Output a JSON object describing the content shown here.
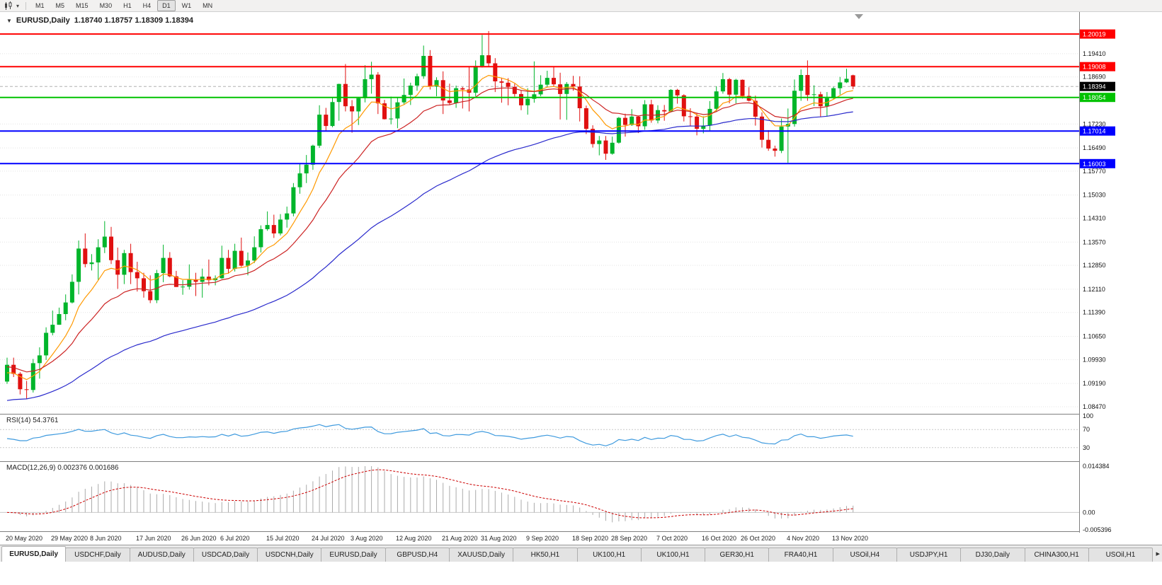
{
  "toolbar": {
    "dropdown_caret": "▾",
    "timeframes": [
      {
        "label": "M1",
        "active": false
      },
      {
        "label": "M5",
        "active": false
      },
      {
        "label": "M15",
        "active": false
      },
      {
        "label": "M30",
        "active": false
      },
      {
        "label": "H1",
        "active": false
      },
      {
        "label": "H4",
        "active": false
      },
      {
        "label": "D1",
        "active": true
      },
      {
        "label": "W1",
        "active": false
      },
      {
        "label": "MN",
        "active": false
      }
    ]
  },
  "chart": {
    "collapse_icon": "▼",
    "symbol_label": "EURUSD,Daily",
    "ohlc_label": "1.18740 1.18757 1.18309 1.18394"
  },
  "price_axis": {
    "regular_labels": [
      "1.19410",
      "1.18690",
      "1.17230",
      "1.16490",
      "1.15770",
      "1.15030",
      "1.14310",
      "1.13570",
      "1.12850",
      "1.12110",
      "1.11390",
      "1.10650",
      "1.09930",
      "1.09190",
      "1.08470"
    ],
    "badges": [
      {
        "value": "1.20019",
        "price": 1.20019,
        "color": "#FF0000"
      },
      {
        "value": "1.19008",
        "price": 1.19008,
        "color": "#FF0000"
      },
      {
        "value": "1.18394",
        "price": 1.18394,
        "color": "#000000"
      },
      {
        "value": "1.18054",
        "price": 1.18054,
        "color": "#00C200"
      },
      {
        "value": "1.17014",
        "price": 1.17014,
        "color": "#0000FF"
      },
      {
        "value": "1.16003",
        "price": 1.16003,
        "color": "#0000FF"
      }
    ]
  },
  "hlines": [
    {
      "price": 1.20019,
      "color": "#FF0000",
      "role": "resistance"
    },
    {
      "price": 1.19008,
      "color": "#FF0000",
      "role": "resistance"
    },
    {
      "price": 1.18054,
      "color": "#00C200",
      "role": "pivot"
    },
    {
      "price": 1.17014,
      "color": "#0000FF",
      "role": "support"
    },
    {
      "price": 1.16003,
      "color": "#0000FF",
      "role": "support"
    }
  ],
  "bid_line": {
    "price": 1.18394,
    "label": "1.18394"
  },
  "rsi_panel": {
    "label": "RSI(14) 54.3761",
    "value": 54.3761,
    "levels": [
      {
        "text": "100",
        "value": 100
      },
      {
        "text": "70",
        "value": 70
      },
      {
        "text": "30",
        "value": 30
      }
    ]
  },
  "macd_panel": {
    "label": "MACD(12,26,9) 0.002376 0.001686",
    "macd_value": 0.002376,
    "signal_value": 0.001686,
    "axis": [
      {
        "text": "0.014384",
        "value": 0.014384
      },
      {
        "text": "0.00",
        "value": 0
      },
      {
        "text": "-0.005396",
        "value": -0.005396
      }
    ]
  },
  "date_axis": [
    {
      "text": "20 May 2020",
      "i": 0
    },
    {
      "text": "29 May 2020",
      "i": 7
    },
    {
      "text": "8 Jun 2020",
      "i": 13
    },
    {
      "text": "17 Jun 2020",
      "i": 20
    },
    {
      "text": "26 Jun 2020",
      "i": 27
    },
    {
      "text": "6 Jul 2020",
      "i": 33
    },
    {
      "text": "15 Jul 2020",
      "i": 40
    },
    {
      "text": "24 Jul 2020",
      "i": 47
    },
    {
      "text": "3 Aug 2020",
      "i": 53
    },
    {
      "text": "12 Aug 2020",
      "i": 60
    },
    {
      "text": "21 Aug 2020",
      "i": 67
    },
    {
      "text": "31 Aug 2020",
      "i": 73
    },
    {
      "text": "9 Sep 2020",
      "i": 80
    },
    {
      "text": "18 Sep 2020",
      "i": 87
    },
    {
      "text": "28 Sep 2020",
      "i": 93
    },
    {
      "text": "7 Oct 2020",
      "i": 100
    },
    {
      "text": "16 Oct 2020",
      "i": 107
    },
    {
      "text": "26 Oct 2020",
      "i": 113
    },
    {
      "text": "4 Nov 2020",
      "i": 120
    },
    {
      "text": "13 Nov 2020",
      "i": 127
    }
  ],
  "tab_bar": {
    "scroll_right_icon": "▸",
    "tabs": [
      {
        "label": "EURUSD,Daily",
        "active": true
      },
      {
        "label": "USDCHF,Daily",
        "active": false
      },
      {
        "label": "AUDUSD,Daily",
        "active": false
      },
      {
        "label": "USDCAD,Daily",
        "active": false
      },
      {
        "label": "USDCNH,Daily",
        "active": false
      },
      {
        "label": "EURUSD,Daily",
        "active": false
      },
      {
        "label": "GBPUSD,H4",
        "active": false
      },
      {
        "label": "XAUUSD,Daily",
        "active": false
      },
      {
        "label": "HK50,H1",
        "active": false
      },
      {
        "label": "UK100,H1",
        "active": false
      },
      {
        "label": "UK100,H1",
        "active": false
      },
      {
        "label": "GER30,H1",
        "active": false
      },
      {
        "label": "FRA40,H1",
        "active": false
      },
      {
        "label": "USOil,H4",
        "active": false
      },
      {
        "label": "USDJPY,H1",
        "active": false
      },
      {
        "label": "DJ30,Daily",
        "active": false
      },
      {
        "label": "CHINA300,H1",
        "active": false
      },
      {
        "label": "USOil,H1",
        "active": false
      }
    ]
  },
  "chart_data": {
    "type": "candlestick",
    "symbol": "EURUSD",
    "timeframe": "Daily",
    "title": "EURUSD,Daily",
    "current_ohlc": {
      "open": 1.1874,
      "high": 1.18757,
      "low": 1.18309,
      "close": 1.18394
    },
    "ylim": [
      1.0825,
      1.207
    ],
    "colors": {
      "up": "#00B52B",
      "down": "#E01010",
      "rsi": "#3E9ADE",
      "macd_hist": "#ABABAB",
      "macd_signal": "#CC0000"
    },
    "overlays": [
      {
        "name": "ma-fast-orange",
        "type": "ema",
        "period": 8,
        "init": 1.0945,
        "color": "#FF9900"
      },
      {
        "name": "ma-mid-red",
        "type": "ema",
        "period": 18,
        "init": 1.097,
        "color": "#CC2222"
      },
      {
        "name": "ma-slow-blue",
        "type": "ema",
        "period": 55,
        "init": 1.0862,
        "color": "#2929CC"
      }
    ],
    "indicators": [
      {
        "name": "RSI",
        "period": 14,
        "current": 54.3761,
        "range": [
          0,
          100
        ],
        "levels": [
          70,
          30
        ]
      },
      {
        "name": "MACD",
        "fast": 12,
        "slow": 26,
        "signal": 9,
        "current_macd": 0.002376,
        "current_signal": 0.001686,
        "range": [
          -0.005396,
          0.014384
        ]
      }
    ],
    "ohlc": [
      [
        "05-20",
        1.0925,
        1.0999,
        1.0918,
        1.0977
      ],
      [
        "05-21",
        1.0977,
        1.0999,
        1.0939,
        1.0949
      ],
      [
        "05-22",
        1.0949,
        1.0954,
        1.0885,
        1.0901
      ],
      [
        "05-25",
        1.0901,
        1.0927,
        1.087,
        1.0899
      ],
      [
        "05-26",
        1.0899,
        1.0995,
        1.0891,
        1.0982
      ],
      [
        "05-27",
        1.0982,
        1.1031,
        1.0934,
        1.1006
      ],
      [
        "05-28",
        1.1006,
        1.1093,
        1.0992,
        1.1076
      ],
      [
        "05-29",
        1.1076,
        1.1145,
        1.1068,
        1.1101
      ],
      [
        "06-01",
        1.1101,
        1.1154,
        1.1101,
        1.1134
      ],
      [
        "06-02",
        1.1134,
        1.1195,
        1.1115,
        1.117
      ],
      [
        "06-03",
        1.117,
        1.1257,
        1.1167,
        1.1234
      ],
      [
        "06-04",
        1.1234,
        1.1362,
        1.1195,
        1.1337
      ],
      [
        "06-05",
        1.1337,
        1.1384,
        1.1279,
        1.1289
      ],
      [
        "06-08",
        1.1289,
        1.132,
        1.1269,
        1.1294
      ],
      [
        "06-09",
        1.1294,
        1.1366,
        1.124,
        1.1341
      ],
      [
        "06-10",
        1.1341,
        1.1422,
        1.1323,
        1.1374
      ],
      [
        "06-11",
        1.1374,
        1.1404,
        1.1289,
        1.1301
      ],
      [
        "06-12",
        1.1301,
        1.134,
        1.1212,
        1.1256
      ],
      [
        "06-15",
        1.1256,
        1.1333,
        1.1227,
        1.1323
      ],
      [
        "06-16",
        1.1323,
        1.1352,
        1.1227,
        1.1264
      ],
      [
        "06-17",
        1.1264,
        1.1296,
        1.1204,
        1.1245
      ],
      [
        "06-18",
        1.1245,
        1.1262,
        1.1185,
        1.1205
      ],
      [
        "06-19",
        1.1205,
        1.1254,
        1.1168,
        1.1177
      ],
      [
        "06-22",
        1.1177,
        1.1271,
        1.1168,
        1.1261
      ],
      [
        "06-23",
        1.1261,
        1.1349,
        1.1233,
        1.1308
      ],
      [
        "06-24",
        1.1308,
        1.1326,
        1.1248,
        1.1251
      ],
      [
        "06-25",
        1.1251,
        1.1268,
        1.1218,
        1.1218
      ],
      [
        "06-26",
        1.1218,
        1.1239,
        1.1194,
        1.1219
      ],
      [
        "06-29",
        1.1219,
        1.1288,
        1.121,
        1.1242
      ],
      [
        "06-30",
        1.1242,
        1.1262,
        1.119,
        1.1234
      ],
      [
        "07-01",
        1.1234,
        1.1275,
        1.1185,
        1.125
      ],
      [
        "07-02",
        1.125,
        1.1303,
        1.1223,
        1.1239
      ],
      [
        "07-03",
        1.1239,
        1.1254,
        1.1223,
        1.1245
      ],
      [
        "07-06",
        1.1245,
        1.1346,
        1.1243,
        1.1308
      ],
      [
        "07-07",
        1.1308,
        1.1333,
        1.1259,
        1.1274
      ],
      [
        "07-08",
        1.1274,
        1.1352,
        1.1266,
        1.133
      ],
      [
        "07-09",
        1.133,
        1.1371,
        1.128,
        1.1284
      ],
      [
        "07-10",
        1.1284,
        1.1325,
        1.1254,
        1.13
      ],
      [
        "07-13",
        1.13,
        1.1375,
        1.1292,
        1.1341
      ],
      [
        "07-14",
        1.1341,
        1.1409,
        1.1325,
        1.1397
      ],
      [
        "07-15",
        1.1397,
        1.1452,
        1.1392,
        1.141
      ],
      [
        "07-16",
        1.141,
        1.1442,
        1.137,
        1.1384
      ],
      [
        "07-17",
        1.1384,
        1.1444,
        1.1378,
        1.1427
      ],
      [
        "07-20",
        1.1427,
        1.1467,
        1.1402,
        1.1446
      ],
      [
        "07-21",
        1.1446,
        1.154,
        1.1437,
        1.1527
      ],
      [
        "07-22",
        1.1527,
        1.1601,
        1.1507,
        1.157
      ],
      [
        "07-23",
        1.157,
        1.1627,
        1.154,
        1.1597
      ],
      [
        "07-24",
        1.1597,
        1.1659,
        1.1581,
        1.1656
      ],
      [
        "07-27",
        1.1656,
        1.1781,
        1.1649,
        1.1752
      ],
      [
        "07-28",
        1.1752,
        1.1773,
        1.17,
        1.1717
      ],
      [
        "07-29",
        1.1717,
        1.1807,
        1.1713,
        1.1791
      ],
      [
        "07-30",
        1.1791,
        1.1848,
        1.1733,
        1.1847
      ],
      [
        "07-31",
        1.1847,
        1.1909,
        1.1762,
        1.1778
      ],
      [
        "08-03",
        1.1778,
        1.1797,
        1.1696,
        1.1762
      ],
      [
        "08-04",
        1.1762,
        1.1807,
        1.172,
        1.1803
      ],
      [
        "08-05",
        1.1803,
        1.1905,
        1.179,
        1.1862
      ],
      [
        "08-06",
        1.1862,
        1.1916,
        1.1817,
        1.1876
      ],
      [
        "08-07",
        1.1876,
        1.1884,
        1.1754,
        1.1787
      ],
      [
        "08-10",
        1.1787,
        1.1798,
        1.1737,
        1.1738
      ],
      [
        "08-11",
        1.1738,
        1.1808,
        1.1722,
        1.174
      ],
      [
        "08-12",
        1.174,
        1.1807,
        1.171,
        1.179
      ],
      [
        "08-13",
        1.179,
        1.1864,
        1.1782,
        1.1813
      ],
      [
        "08-14",
        1.1813,
        1.1851,
        1.1782,
        1.1842
      ],
      [
        "08-17",
        1.1842,
        1.1879,
        1.1826,
        1.1871
      ],
      [
        "08-18",
        1.1871,
        1.1966,
        1.1863,
        1.1934
      ],
      [
        "08-19",
        1.1934,
        1.1952,
        1.183,
        1.1839
      ],
      [
        "08-20",
        1.1839,
        1.1868,
        1.1809,
        1.1859
      ],
      [
        "08-21",
        1.1859,
        1.1886,
        1.1754,
        1.1796
      ],
      [
        "08-24",
        1.1796,
        1.1848,
        1.1783,
        1.1788
      ],
      [
        "08-25",
        1.1788,
        1.1842,
        1.1773,
        1.1834
      ],
      [
        "08-26",
        1.1834,
        1.1838,
        1.1771,
        1.183
      ],
      [
        "08-27",
        1.183,
        1.1901,
        1.1762,
        1.182
      ],
      [
        "08-28",
        1.182,
        1.192,
        1.1809,
        1.1903
      ],
      [
        "08-31",
        1.1903,
        1.1999,
        1.1898,
        1.1936
      ],
      [
        "09-01",
        1.1936,
        1.2011,
        1.1899,
        1.1911
      ],
      [
        "09-02",
        1.1911,
        1.1927,
        1.1822,
        1.1855
      ],
      [
        "09-03",
        1.1855,
        1.1865,
        1.1789,
        1.1851
      ],
      [
        "09-04",
        1.1851,
        1.1865,
        1.1781,
        1.1838
      ],
      [
        "09-07",
        1.1838,
        1.1848,
        1.1808,
        1.1816
      ],
      [
        "09-08",
        1.1816,
        1.1827,
        1.1766,
        1.1781
      ],
      [
        "09-09",
        1.1781,
        1.1834,
        1.1752,
        1.1801
      ],
      [
        "09-10",
        1.1801,
        1.1917,
        1.1789,
        1.1815
      ],
      [
        "09-11",
        1.1815,
        1.1874,
        1.1809,
        1.1845
      ],
      [
        "09-14",
        1.1845,
        1.1888,
        1.1839,
        1.1866
      ],
      [
        "09-15",
        1.1866,
        1.19,
        1.1839,
        1.1846
      ],
      [
        "09-16",
        1.1846,
        1.1882,
        1.1737,
        1.1816
      ],
      [
        "09-17",
        1.1816,
        1.1853,
        1.1736,
        1.1847
      ],
      [
        "09-18",
        1.1847,
        1.1872,
        1.1826,
        1.1839
      ],
      [
        "09-21",
        1.1839,
        1.1871,
        1.1731,
        1.1772
      ],
      [
        "09-22",
        1.1772,
        1.178,
        1.1692,
        1.1708
      ],
      [
        "09-23",
        1.1708,
        1.1719,
        1.165,
        1.1661
      ],
      [
        "09-24",
        1.1661,
        1.1686,
        1.1626,
        1.1672
      ],
      [
        "09-25",
        1.1672,
        1.1686,
        1.1612,
        1.1631
      ],
      [
        "09-28",
        1.1631,
        1.1684,
        1.1628,
        1.1665
      ],
      [
        "09-29",
        1.1665,
        1.1745,
        1.1662,
        1.1742
      ],
      [
        "09-30",
        1.1742,
        1.1755,
        1.1684,
        1.172
      ],
      [
        "10-01",
        1.172,
        1.1769,
        1.1717,
        1.1746
      ],
      [
        "10-02",
        1.1746,
        1.1749,
        1.1695,
        1.1716
      ],
      [
        "10-05",
        1.1716,
        1.1797,
        1.1705,
        1.1784
      ],
      [
        "10-06",
        1.1784,
        1.1798,
        1.1727,
        1.1734
      ],
      [
        "10-07",
        1.1734,
        1.1781,
        1.1725,
        1.1766
      ],
      [
        "10-08",
        1.1766,
        1.1782,
        1.1733,
        1.1762
      ],
      [
        "10-09",
        1.1762,
        1.1831,
        1.176,
        1.1829
      ],
      [
        "10-12",
        1.1829,
        1.1832,
        1.1786,
        1.1812
      ],
      [
        "10-13",
        1.1812,
        1.1815,
        1.1731,
        1.1747
      ],
      [
        "10-14",
        1.1747,
        1.1772,
        1.1717,
        1.1746
      ],
      [
        "10-15",
        1.1746,
        1.1758,
        1.1688,
        1.1708
      ],
      [
        "10-16",
        1.1708,
        1.1747,
        1.1694,
        1.1718
      ],
      [
        "10-19",
        1.1718,
        1.1794,
        1.1703,
        1.177
      ],
      [
        "10-20",
        1.177,
        1.184,
        1.176,
        1.1824
      ],
      [
        "10-21",
        1.1824,
        1.1881,
        1.1817,
        1.1862
      ],
      [
        "10-22",
        1.1862,
        1.1866,
        1.1787,
        1.1814
      ],
      [
        "10-23",
        1.1814,
        1.1863,
        1.1787,
        1.186
      ],
      [
        "10-26",
        1.186,
        1.1861,
        1.1802,
        1.181
      ],
      [
        "10-27",
        1.181,
        1.1837,
        1.1793,
        1.1795
      ],
      [
        "10-28",
        1.1795,
        1.1811,
        1.1718,
        1.1746
      ],
      [
        "10-29",
        1.1746,
        1.1759,
        1.165,
        1.1674
      ],
      [
        "10-30",
        1.1674,
        1.1704,
        1.164,
        1.1647
      ],
      [
        "11-02",
        1.1647,
        1.1656,
        1.1622,
        1.164
      ],
      [
        "11-03",
        1.164,
        1.174,
        1.1633,
        1.1715
      ],
      [
        "11-04",
        1.1715,
        1.1771,
        1.1603,
        1.1723
      ],
      [
        "11-05",
        1.1723,
        1.1861,
        1.1715,
        1.1826
      ],
      [
        "11-06",
        1.1826,
        1.1892,
        1.1795,
        1.1875
      ],
      [
        "11-09",
        1.1875,
        1.192,
        1.1795,
        1.1813
      ],
      [
        "11-10",
        1.1813,
        1.1843,
        1.1779,
        1.1815
      ],
      [
        "11-11",
        1.1815,
        1.1823,
        1.1745,
        1.1778
      ],
      [
        "11-12",
        1.1778,
        1.1822,
        1.1746,
        1.1803
      ],
      [
        "11-13",
        1.1803,
        1.1838,
        1.1799,
        1.1834
      ],
      [
        "11-16",
        1.1834,
        1.1869,
        1.1814,
        1.1852
      ],
      [
        "11-17",
        1.1852,
        1.1894,
        1.185,
        1.1863
      ],
      [
        "11-18",
        1.1874,
        1.18757,
        1.18309,
        1.18394
      ]
    ]
  }
}
